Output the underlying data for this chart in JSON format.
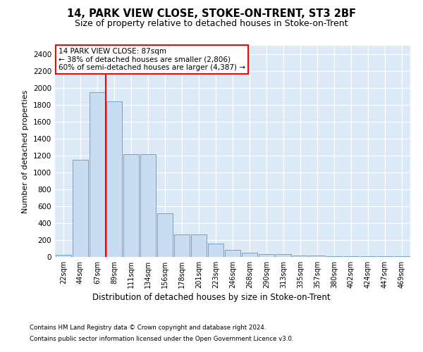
{
  "title1": "14, PARK VIEW CLOSE, STOKE-ON-TRENT, ST3 2BF",
  "title2": "Size of property relative to detached houses in Stoke-on-Trent",
  "xlabel": "Distribution of detached houses by size in Stoke-on-Trent",
  "ylabel": "Number of detached properties",
  "categories": [
    "22sqm",
    "44sqm",
    "67sqm",
    "89sqm",
    "111sqm",
    "134sqm",
    "156sqm",
    "178sqm",
    "201sqm",
    "223sqm",
    "246sqm",
    "268sqm",
    "290sqm",
    "313sqm",
    "335sqm",
    "357sqm",
    "380sqm",
    "402sqm",
    "424sqm",
    "447sqm",
    "469sqm"
  ],
  "bar_values": [
    25,
    1150,
    1950,
    1840,
    1220,
    1220,
    515,
    265,
    265,
    155,
    80,
    50,
    35,
    35,
    20,
    15,
    10,
    8,
    5,
    5,
    12
  ],
  "bar_color": "#c9ddf2",
  "bar_edge_color": "#6aa3d5",
  "vline_color": "red",
  "vline_x": 3.0,
  "annotation_text": "14 PARK VIEW CLOSE: 87sqm\n← 38% of detached houses are smaller (2,806)\n60% of semi-detached houses are larger (4,387) →",
  "ylim": [
    0,
    2500
  ],
  "yticks": [
    0,
    200,
    400,
    600,
    800,
    1000,
    1200,
    1400,
    1600,
    1800,
    2000,
    2200,
    2400
  ],
  "footer1": "Contains HM Land Registry data © Crown copyright and database right 2024.",
  "footer2": "Contains public sector information licensed under the Open Government Licence v3.0.",
  "bg_color": "#dce9f7",
  "grid_color": "white",
  "title1_fontsize": 10.5,
  "title2_fontsize": 9
}
